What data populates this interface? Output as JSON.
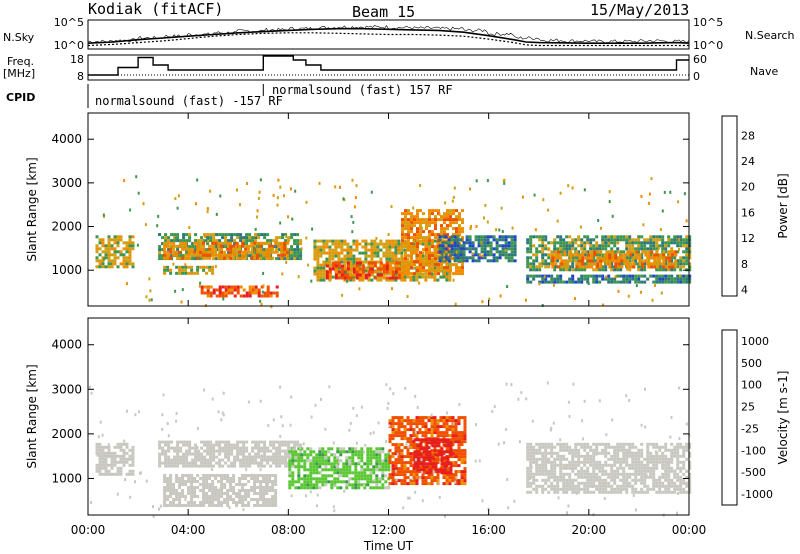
{
  "header": {
    "site": "Kodiak (fitACF)",
    "beam": "Beam 15",
    "date": "15/May/2013"
  },
  "side_labels": {
    "nsky": "N.Sky",
    "freq": "Freq.",
    "freq_unit": "[MHz]",
    "cpid": "CPID",
    "nsearch": "N.Search",
    "nave": "Nave"
  },
  "cpid_labels": [
    "normalsound (fast) -157 RF",
    "normalsound (fast) 157 RF"
  ],
  "colors": {
    "power": [
      "#1e1ee6",
      "#1e46c8",
      "#2d7878",
      "#3c9650",
      "#d2a014",
      "#f08c00",
      "#f05000",
      "#e61e1e"
    ],
    "velocity": [
      "#e61e1e",
      "#f05000",
      "#f08c00",
      "#c8c8c0",
      "#c8c8c0",
      "#5ac832",
      "#3c9650",
      "#1e46c8"
    ]
  },
  "chart_data": [
    {
      "type": "line",
      "name": "noise",
      "xlim": [
        0,
        24
      ],
      "y_ticks_left": [
        "10^5",
        "10^0"
      ],
      "y_ticks_right": [
        "10^5",
        "10^0"
      ],
      "series": [
        {
          "name": "N.Sky",
          "x": [
            0,
            1,
            2,
            3,
            4,
            5,
            6,
            7,
            8,
            9,
            10,
            11,
            12,
            13,
            14,
            15,
            16,
            17,
            17.5,
            18,
            20,
            22,
            23.5,
            24
          ],
          "values": [
            1.0,
            1.2,
            1.6,
            1.9,
            2.2,
            2.5,
            2.8,
            3.0,
            3.2,
            3.4,
            3.5,
            3.5,
            3.4,
            3.3,
            3.2,
            2.9,
            2.3,
            1.6,
            1.2,
            1.1,
            1.0,
            1.0,
            1.1,
            1.0
          ]
        },
        {
          "name": "N.Search",
          "x": [
            0,
            1,
            2,
            3,
            4,
            5,
            6,
            7,
            8,
            9,
            10,
            11,
            12,
            13,
            14,
            15,
            16,
            17,
            17.5,
            18,
            20,
            22,
            23.5,
            24
          ],
          "values": [
            0.6,
            0.8,
            1.1,
            1.4,
            1.8,
            2.2,
            2.5,
            2.7,
            2.8,
            2.8,
            2.7,
            2.6,
            2.5,
            2.5,
            2.4,
            2.2,
            1.7,
            1.1,
            0.7,
            0.6,
            0.6,
            0.6,
            0.6,
            0.6
          ]
        }
      ]
    },
    {
      "type": "line",
      "name": "frequency and nave",
      "xlim": [
        0,
        24
      ],
      "y_ticks_left": [
        "18",
        "8"
      ],
      "y_ticks_right": [
        "60",
        "0"
      ],
      "series": [
        {
          "name": "Freq.",
          "x": [
            0,
            1.2,
            1.2,
            2.0,
            2.0,
            2.6,
            2.6,
            3.2,
            3.2,
            7.0,
            7.0,
            8.2,
            8.2,
            8.7,
            8.7,
            9.3,
            9.3,
            23.5,
            23.5,
            24
          ],
          "values": [
            10,
            10,
            13,
            13,
            17,
            17,
            14,
            14,
            12,
            12,
            17.6,
            17.6,
            16,
            16,
            14,
            14,
            12,
            12,
            16,
            16
          ]
        },
        {
          "name": "Nave",
          "x": [
            0,
            24
          ],
          "values": [
            10,
            10
          ]
        }
      ]
    },
    {
      "type": "heatmap",
      "name": "power",
      "xlabel": "",
      "ylabel": "Slant Range [km]",
      "colorbar_label": "Power [dB]",
      "colorbar_ticks": [
        "28",
        "24",
        "20",
        "16",
        "12",
        "8",
        "4"
      ],
      "xlim": [
        0,
        24
      ],
      "ylim": [
        180,
        4600
      ],
      "y_ticks": [
        "1000",
        "2000",
        "3000",
        "4000"
      ],
      "bands": [
        {
          "x": [
            0.3,
            1.8
          ],
          "y": [
            1100,
            1800
          ],
          "level": 20
        },
        {
          "x": [
            2.8,
            8.5
          ],
          "y": [
            1250,
            1850
          ],
          "level": 16
        },
        {
          "x": [
            3.0,
            8.0
          ],
          "y": [
            1300,
            1650
          ],
          "level": 24
        },
        {
          "x": [
            3.0,
            5.0
          ],
          "y": [
            900,
            1100
          ],
          "level": 20
        },
        {
          "x": [
            4.5,
            7.5
          ],
          "y": [
            380,
            650
          ],
          "level": 28
        },
        {
          "x": [
            9.0,
            14.5
          ],
          "y": [
            800,
            1700
          ],
          "level": 20
        },
        {
          "x": [
            9.5,
            12.5
          ],
          "y": [
            850,
            1200
          ],
          "level": 28
        },
        {
          "x": [
            12.5,
            15.0
          ],
          "y": [
            900,
            2400
          ],
          "level": 24
        },
        {
          "x": [
            14.0,
            17.0
          ],
          "y": [
            1200,
            1800
          ],
          "level": 12
        },
        {
          "x": [
            17.5,
            24.0
          ],
          "y": [
            1000,
            1800
          ],
          "level": 16
        },
        {
          "x": [
            18.5,
            23.5
          ],
          "y": [
            1100,
            1450
          ],
          "level": 24
        },
        {
          "x": [
            17.5,
            24.0
          ],
          "y": [
            700,
            900
          ],
          "level": 12
        }
      ]
    },
    {
      "type": "heatmap",
      "name": "velocity",
      "xlabel": "Time UT",
      "ylabel": "Slant Range [km]",
      "colorbar_label": "Velocity [m s-1]",
      "colorbar_ticks": [
        "1000",
        "500",
        "100",
        "25",
        "-25",
        "-100",
        "-500",
        "-1000"
      ],
      "x_ticks": [
        "00:00",
        "04:00",
        "08:00",
        "12:00",
        "16:00",
        "20:00",
        "00:00"
      ],
      "xlim": [
        0,
        24
      ],
      "ylim": [
        180,
        4600
      ],
      "y_ticks": [
        "1000",
        "2000",
        "3000",
        "4000"
      ],
      "bands": [
        {
          "x": [
            0.3,
            1.8
          ],
          "y": [
            1100,
            1800
          ],
          "level": 0
        },
        {
          "x": [
            2.8,
            8.5
          ],
          "y": [
            1250,
            1850
          ],
          "level": 0
        },
        {
          "x": [
            3.0,
            7.5
          ],
          "y": [
            400,
            1100
          ],
          "level": 0
        },
        {
          "x": [
            8.0,
            12.0
          ],
          "y": [
            800,
            1700
          ],
          "level": 100
        },
        {
          "x": [
            12.0,
            15.0
          ],
          "y": [
            900,
            2400
          ],
          "level": -500
        },
        {
          "x": [
            13.0,
            14.5
          ],
          "y": [
            1100,
            1900
          ],
          "level": -1000
        },
        {
          "x": [
            17.5,
            24.0
          ],
          "y": [
            700,
            1800
          ],
          "level": 0
        }
      ]
    }
  ]
}
